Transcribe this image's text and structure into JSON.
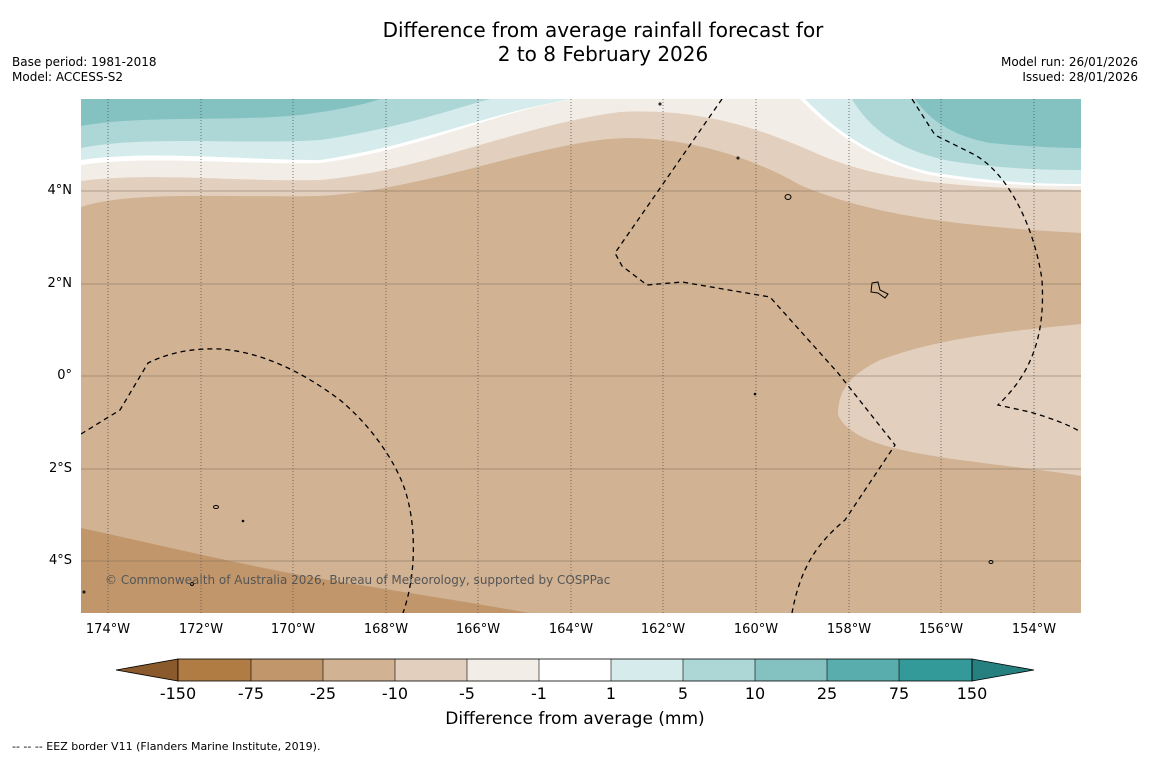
{
  "header": {
    "title_line1": "Difference from average rainfall forecast for",
    "title_line2": "2 to 8 February 2026",
    "base_period": "Base period: 1981-2018",
    "model": "Model: ACCESS-S2",
    "model_run": "Model run: 26/01/2026",
    "issued": "Issued: 28/01/2026"
  },
  "map": {
    "lat_labels": [
      "4°N",
      "2°N",
      "0°",
      "2°S",
      "4°S"
    ],
    "lon_labels": [
      "174°W",
      "172°W",
      "170°W",
      "168°W",
      "166°W",
      "164°W",
      "162°W",
      "160°W",
      "158°W",
      "156°W",
      "154°W"
    ],
    "copyright": "© Commonwealth of Australia 2026, Bureau of Meteorology, supported by COSPPac",
    "colors": {
      "n75": "#b07c44",
      "n25": "#c1966b",
      "n10": "#d1b293",
      "n5": "#e2cfbe",
      "n1": "#f2ede6",
      "zero": "#ffffff",
      "p1": "#d6ebeb",
      "p5": "#add6d6",
      "p10": "#84c2c2",
      "p25": "#5aadad",
      "p75": "#339999",
      "p150": "#278080",
      "n150": "#8a5a2c"
    }
  },
  "colorbar": {
    "ticks": [
      "-150",
      "-75",
      "-25",
      "-10",
      "-5",
      "-1",
      "1",
      "5",
      "10",
      "25",
      "75",
      "150"
    ],
    "title": "Difference from average (mm)"
  },
  "footer": "--  --  -- EEZ border V11 (Flanders Marine Institute, 2019)."
}
